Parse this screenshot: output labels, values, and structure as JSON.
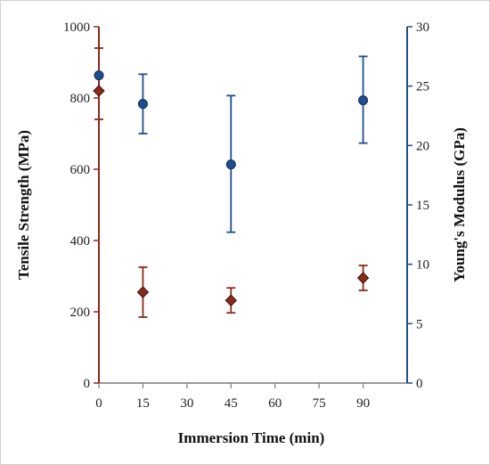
{
  "chart_data": {
    "type": "scatter",
    "xlabel": "Immersion Time (min)",
    "ylabel": "Tensile Strength (MPa)",
    "y2label": "Young's Modulus (GPa)",
    "xlim": [
      0,
      105
    ],
    "xticks": [
      0,
      15,
      30,
      45,
      60,
      75,
      90
    ],
    "ylim": [
      0,
      1000
    ],
    "yticks": [
      0,
      200,
      400,
      600,
      800,
      1000
    ],
    "y2lim": [
      0,
      30
    ],
    "y2ticks": [
      0,
      5,
      10,
      15,
      20,
      25,
      30
    ],
    "grid": false,
    "legend": "none",
    "series": [
      {
        "axis": "left",
        "marker": "diamond",
        "color": "#8b2a1c",
        "x": [
          0,
          15,
          45,
          90
        ],
        "y": [
          820,
          255,
          232,
          295
        ],
        "err_low": [
          80,
          70,
          35,
          35
        ],
        "err_high": [
          120,
          70,
          35,
          35
        ]
      },
      {
        "axis": "right",
        "marker": "circle",
        "color": "#1f4e8c",
        "x": [
          0,
          15,
          45,
          90
        ],
        "y": [
          25.9,
          23.5,
          18.4,
          23.8
        ],
        "err_low": [
          0,
          2.5,
          5.7,
          3.6
        ],
        "err_high": [
          0,
          2.5,
          5.8,
          3.7
        ]
      }
    ]
  }
}
